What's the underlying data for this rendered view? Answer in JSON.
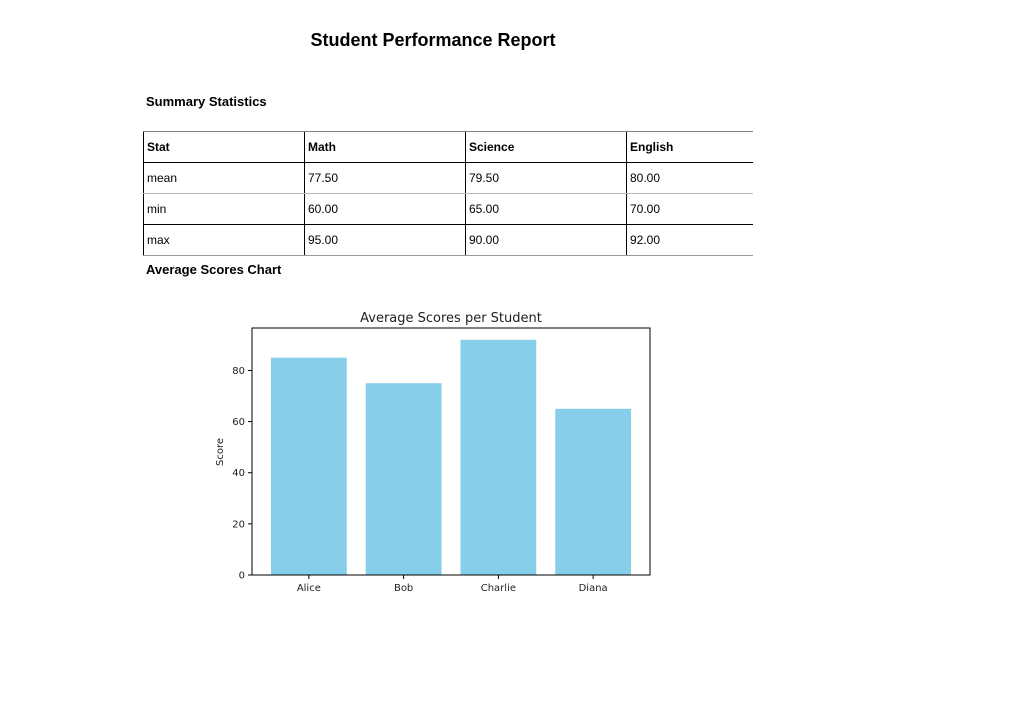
{
  "report": {
    "title": "Student Performance Report"
  },
  "summary": {
    "heading": "Summary Statistics",
    "columns": [
      "Stat",
      "Math",
      "Science",
      "English"
    ],
    "rows": [
      [
        "mean",
        "77.50",
        "79.50",
        "80.00"
      ],
      [
        "min",
        "60.00",
        "65.00",
        "70.00"
      ],
      [
        "max",
        "95.00",
        "90.00",
        "92.00"
      ]
    ]
  },
  "chart_section": {
    "heading": "Average Scores Chart"
  },
  "chart_data": {
    "type": "bar",
    "title": "Average Scores per Student",
    "xlabel": "",
    "ylabel": "Score",
    "categories": [
      "Alice",
      "Bob",
      "Charlie",
      "Diana"
    ],
    "values": [
      85,
      75,
      92,
      65
    ],
    "yticks": [
      0,
      20,
      40,
      60,
      80
    ],
    "ylim": [
      0,
      96.6
    ],
    "bar_color": "#87CEEB",
    "grid": false,
    "legend": "none"
  }
}
